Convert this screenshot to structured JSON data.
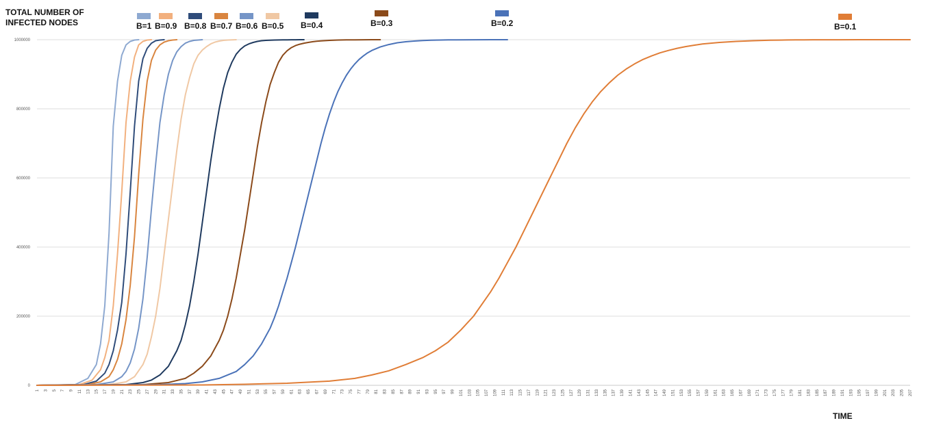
{
  "chart_data": {
    "type": "line",
    "title": "",
    "ylabel": "TOTAL NUMBER OF\nINFECTED NODES",
    "xlabel": "TIME",
    "ylim": [
      0,
      1000000
    ],
    "yticks": [
      0,
      200000,
      400000,
      600000,
      800000,
      1000000
    ],
    "xlim": [
      1,
      207
    ],
    "xticks": [
      1,
      3,
      5,
      7,
      9,
      11,
      13,
      15,
      17,
      19,
      21,
      23,
      25,
      27,
      29,
      31,
      33,
      35,
      37,
      39,
      41,
      43,
      45,
      47,
      49,
      51,
      53,
      55,
      57,
      59,
      61,
      63,
      65,
      67,
      69,
      71,
      73,
      75,
      77,
      79,
      81,
      83,
      85,
      87,
      89,
      91,
      93,
      95,
      97,
      99,
      101,
      103,
      105,
      107,
      109,
      111,
      113,
      115,
      117,
      119,
      121,
      123,
      125,
      127,
      129,
      131,
      133,
      135,
      137,
      139,
      141,
      143,
      145,
      147,
      149,
      151,
      153,
      155,
      157,
      159,
      161,
      163,
      165,
      167,
      169,
      171,
      173,
      175,
      177,
      179,
      181,
      183,
      185,
      187,
      189,
      191,
      193,
      195,
      197,
      199,
      201,
      203,
      205,
      207
    ],
    "grid": true,
    "legend_position": "top",
    "series": [
      {
        "name": "B=1",
        "color": "#8EA9D1",
        "x_end": 25,
        "x": [
          1,
          10,
          13,
          15,
          16,
          17,
          18,
          19,
          20,
          21,
          22,
          23,
          24,
          25
        ],
        "y": [
          0,
          2000,
          20000,
          60000,
          120000,
          230000,
          440000,
          750000,
          880000,
          955000,
          985000,
          995000,
          999000,
          1000000
        ]
      },
      {
        "name": "B=0.9",
        "color": "#F2B07E",
        "x_end": 28,
        "x": [
          1,
          11,
          14,
          16,
          17,
          18,
          19,
          20,
          21,
          22,
          23,
          24,
          25,
          26,
          27,
          28
        ],
        "y": [
          0,
          2000,
          15000,
          45000,
          80000,
          130000,
          230000,
          380000,
          560000,
          760000,
          880000,
          950000,
          985000,
          995000,
          999000,
          1000000
        ]
      },
      {
        "name": "B=0.8",
        "color": "#2F4C7A",
        "x_end": 31,
        "x": [
          1,
          12,
          15,
          17,
          18,
          19,
          20,
          21,
          22,
          23,
          24,
          25,
          26,
          27,
          28,
          29,
          30,
          31
        ],
        "y": [
          0,
          2000,
          12000,
          35000,
          60000,
          100000,
          160000,
          240000,
          380000,
          560000,
          750000,
          880000,
          945000,
          975000,
          990000,
          997000,
          999000,
          1000000
        ]
      },
      {
        "name": "B=0.7",
        "color": "#D9853F",
        "x_end": 34,
        "x": [
          1,
          13,
          16,
          18,
          19,
          20,
          21,
          22,
          23,
          24,
          25,
          26,
          27,
          28,
          29,
          30,
          31,
          32,
          33,
          34
        ],
        "y": [
          0,
          2000,
          10000,
          25000,
          45000,
          75000,
          120000,
          190000,
          290000,
          430000,
          610000,
          770000,
          880000,
          940000,
          970000,
          985000,
          993000,
          997000,
          999000,
          1000000
        ]
      },
      {
        "name": "B=0.6",
        "color": "#7595C7",
        "x_end": 40,
        "x": [
          1,
          15,
          19,
          21,
          22,
          23,
          24,
          25,
          26,
          27,
          28,
          29,
          30,
          31,
          32,
          33,
          34,
          35,
          36,
          37,
          38,
          39,
          40
        ],
        "y": [
          0,
          2000,
          10000,
          25000,
          40000,
          65000,
          105000,
          165000,
          250000,
          370000,
          510000,
          640000,
          760000,
          840000,
          900000,
          940000,
          965000,
          980000,
          990000,
          995000,
          998000,
          999000,
          1000000
        ]
      },
      {
        "name": "B=0.5",
        "color": "#F0C8A4",
        "x_end": 48,
        "x": [
          1,
          18,
          22,
          24,
          26,
          27,
          28,
          29,
          30,
          31,
          32,
          33,
          34,
          35,
          36,
          37,
          38,
          39,
          40,
          41,
          42,
          43,
          44,
          45,
          46,
          47,
          48
        ],
        "y": [
          0,
          2000,
          10000,
          25000,
          60000,
          90000,
          140000,
          200000,
          280000,
          380000,
          480000,
          580000,
          680000,
          770000,
          840000,
          890000,
          930000,
          955000,
          970000,
          980000,
          988000,
          993000,
          996000,
          998000,
          999000,
          999500,
          1000000
        ]
      },
      {
        "name": "B=0.4",
        "color": "#1F3A5F",
        "x_end": 64,
        "x": [
          1,
          22,
          26,
          28,
          30,
          32,
          34,
          35,
          36,
          37,
          38,
          39,
          40,
          41,
          42,
          43,
          44,
          45,
          46,
          47,
          48,
          49,
          50,
          51,
          52,
          53,
          54,
          55,
          56,
          57,
          58,
          59,
          60,
          61,
          62,
          63,
          64
        ],
        "y": [
          0,
          2000,
          8000,
          15000,
          30000,
          55000,
          100000,
          130000,
          175000,
          230000,
          300000,
          380000,
          470000,
          560000,
          650000,
          730000,
          800000,
          860000,
          905000,
          935000,
          958000,
          972000,
          982000,
          988000,
          992000,
          995000,
          997000,
          998000,
          998500,
          999000,
          999300,
          999500,
          999700,
          999800,
          999900,
          999950,
          1000000
        ]
      },
      {
        "name": "B=0.3",
        "color": "#8B4A1A",
        "x_end": 82,
        "x": [
          1,
          26,
          32,
          36,
          38,
          40,
          42,
          44,
          45,
          46,
          47,
          48,
          49,
          50,
          51,
          52,
          53,
          54,
          55,
          56,
          57,
          58,
          59,
          60,
          61,
          62,
          63,
          64,
          65,
          66,
          67,
          68,
          70,
          72,
          74,
          76,
          78,
          80,
          82
        ],
        "y": [
          0,
          2000,
          8000,
          20000,
          35000,
          55000,
          85000,
          130000,
          160000,
          200000,
          250000,
          310000,
          380000,
          450000,
          530000,
          610000,
          690000,
          760000,
          820000,
          870000,
          905000,
          935000,
          955000,
          968000,
          977000,
          983000,
          987000,
          990000,
          992000,
          994000,
          995500,
          996500,
          998000,
          999000,
          999500,
          999700,
          999850,
          999950,
          1000000
        ]
      },
      {
        "name": "B=0.2",
        "color": "#4A72B8",
        "x_end": 112,
        "x": [
          1,
          30,
          36,
          40,
          44,
          48,
          50,
          52,
          54,
          56,
          57,
          58,
          59,
          60,
          61,
          62,
          63,
          64,
          65,
          66,
          67,
          68,
          69,
          70,
          71,
          72,
          73,
          74,
          75,
          76,
          77,
          78,
          79,
          80,
          82,
          84,
          86,
          88,
          90,
          92,
          94,
          96,
          98,
          100,
          104,
          108,
          112
        ],
        "y": [
          0,
          2000,
          5000,
          10000,
          20000,
          40000,
          60000,
          85000,
          120000,
          165000,
          195000,
          230000,
          270000,
          310000,
          355000,
          400000,
          450000,
          500000,
          550000,
          600000,
          650000,
          700000,
          745000,
          785000,
          820000,
          850000,
          875000,
          897000,
          915000,
          930000,
          943000,
          953000,
          962000,
          969000,
          979000,
          986000,
          991000,
          994000,
          996000,
          997500,
          998500,
          999000,
          999400,
          999700,
          999850,
          999950,
          1000000
        ]
      },
      {
        "name": "B=0.1",
        "color": "#E07D36",
        "x_end": 207,
        "x": [
          1,
          40,
          50,
          60,
          70,
          76,
          80,
          84,
          88,
          92,
          95,
          98,
          101,
          104,
          106,
          108,
          110,
          112,
          114,
          116,
          118,
          120,
          122,
          124,
          126,
          128,
          130,
          132,
          134,
          136,
          138,
          140,
          142,
          144,
          146,
          148,
          150,
          152,
          154,
          156,
          158,
          160,
          162,
          164,
          166,
          168,
          170,
          172,
          174,
          176,
          178,
          180,
          182,
          184,
          186,
          190,
          195,
          200,
          207
        ],
        "y": [
          0,
          1000,
          3000,
          6000,
          12000,
          20000,
          30000,
          42000,
          60000,
          80000,
          100000,
          125000,
          160000,
          200000,
          235000,
          270000,
          310000,
          355000,
          400000,
          450000,
          500000,
          550000,
          600000,
          650000,
          700000,
          745000,
          785000,
          820000,
          850000,
          875000,
          897000,
          915000,
          930000,
          943000,
          953000,
          962000,
          969000,
          975000,
          980000,
          984000,
          987500,
          990000,
          992000,
          993500,
          995000,
          996000,
          997000,
          997800,
          998400,
          998900,
          999200,
          999500,
          999700,
          999800,
          999850,
          999900,
          999950,
          999980,
          1000000
        ]
      }
    ]
  }
}
